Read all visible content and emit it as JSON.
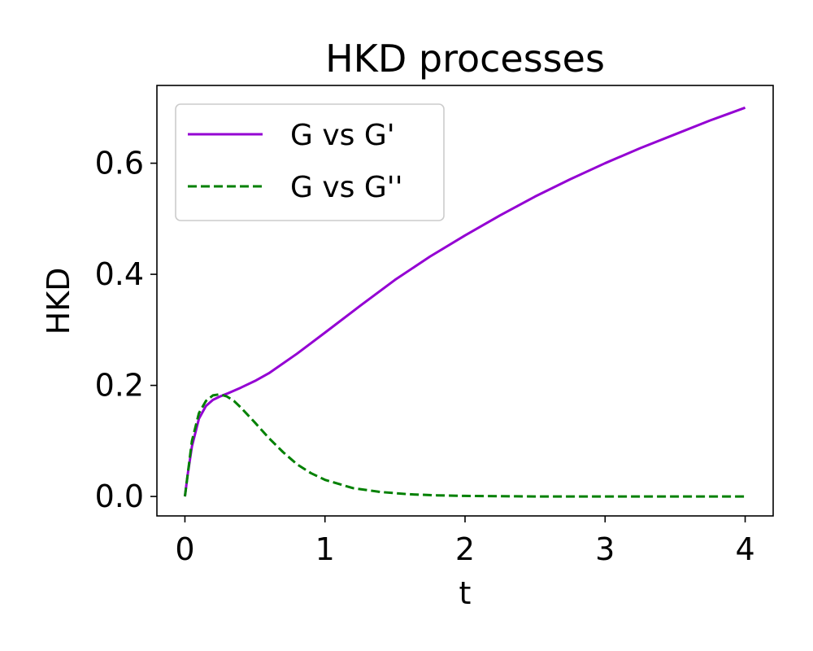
{
  "chart_data": {
    "type": "line",
    "title": "HKD processes",
    "xlabel": "t",
    "ylabel": "HKD",
    "xlim": [
      -0.2,
      4.2
    ],
    "ylim": [
      -0.035,
      0.74
    ],
    "xticks": [
      0,
      1,
      2,
      3,
      4
    ],
    "xtick_labels": [
      "0",
      "1",
      "2",
      "3",
      "4"
    ],
    "yticks": [
      0.0,
      0.2,
      0.4,
      0.6
    ],
    "ytick_labels": [
      "0.0",
      "0.2",
      "0.4",
      "0.6"
    ],
    "grid": false,
    "legend_position": "top-left",
    "series": [
      {
        "name": "G vs G'",
        "color": "#9400d3",
        "style": "solid",
        "x": [
          0,
          0.02,
          0.05,
          0.1,
          0.15,
          0.2,
          0.25,
          0.3,
          0.4,
          0.5,
          0.6,
          0.8,
          1.0,
          1.25,
          1.5,
          1.75,
          2.0,
          2.25,
          2.5,
          2.75,
          3.0,
          3.25,
          3.5,
          3.75,
          4.0
        ],
        "y": [
          0.0,
          0.04,
          0.09,
          0.14,
          0.163,
          0.174,
          0.18,
          0.185,
          0.196,
          0.208,
          0.222,
          0.257,
          0.295,
          0.343,
          0.39,
          0.432,
          0.47,
          0.506,
          0.54,
          0.571,
          0.6,
          0.627,
          0.652,
          0.677,
          0.7
        ]
      },
      {
        "name": "G vs G''",
        "color": "#008000",
        "style": "dashed",
        "x": [
          0,
          0.02,
          0.05,
          0.1,
          0.15,
          0.2,
          0.25,
          0.3,
          0.35,
          0.4,
          0.5,
          0.6,
          0.7,
          0.8,
          0.9,
          1.0,
          1.2,
          1.4,
          1.6,
          1.8,
          2.0,
          2.5,
          3.0,
          3.5,
          4.0
        ],
        "y": [
          0.0,
          0.04,
          0.1,
          0.15,
          0.172,
          0.182,
          0.184,
          0.18,
          0.172,
          0.16,
          0.133,
          0.105,
          0.08,
          0.058,
          0.042,
          0.03,
          0.015,
          0.008,
          0.004,
          0.002,
          0.001,
          0.0,
          0.0,
          0.0,
          0.0
        ]
      }
    ]
  }
}
